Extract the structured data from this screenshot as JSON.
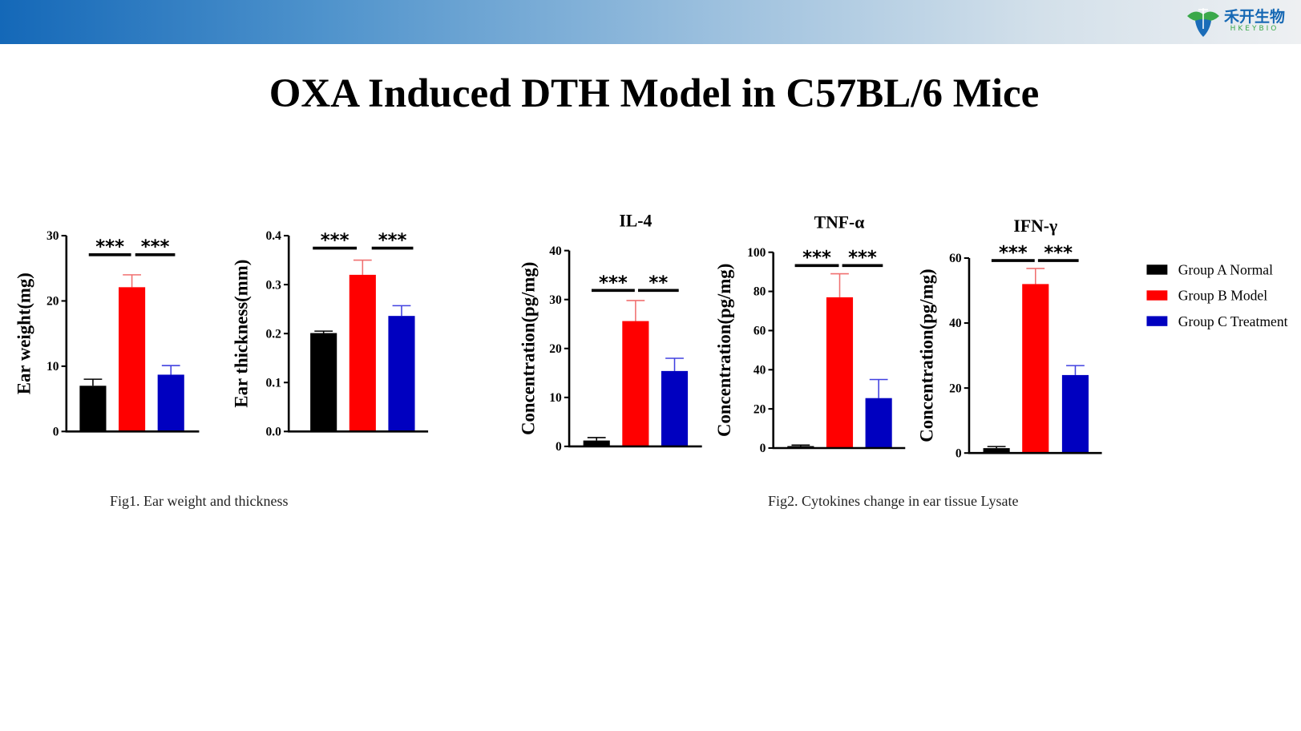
{
  "header": {
    "logo_cn": "禾开生物",
    "logo_en": "HKEYBIO"
  },
  "title": "OXA Induced DTH Model in C57BL/6 Mice",
  "captions": {
    "fig1": "Fig1. Ear weight and thickness",
    "fig2": "Fig2. Cytokines change in ear tissue Lysate"
  },
  "legend": [
    {
      "label": "Group A Normal",
      "color": "#000000"
    },
    {
      "label": "Group B Model",
      "color": "#ff0000"
    },
    {
      "label": "Group C Treatment",
      "color": "#0000c0"
    }
  ],
  "chart_data": [
    {
      "type": "bar",
      "title": "",
      "ylabel": "Ear weight(mg)",
      "ylim": [
        0,
        30
      ],
      "yticks": [
        "0",
        "10",
        "20",
        "30"
      ],
      "categories": [
        "Group A Normal",
        "Group B Model",
        "Group C Treatment"
      ],
      "values": [
        7.0,
        22.1,
        8.7
      ],
      "errors": [
        1.0,
        1.9,
        1.4
      ],
      "significance": [
        "***",
        "***"
      ]
    },
    {
      "type": "bar",
      "title": "",
      "ylabel": "Ear thickness(mm)",
      "ylim": [
        0,
        0.4
      ],
      "yticks": [
        "0.0",
        "0.1",
        "0.2",
        "0.3",
        "0.4"
      ],
      "categories": [
        "Group A Normal",
        "Group B Model",
        "Group C Treatment"
      ],
      "values": [
        0.201,
        0.32,
        0.236
      ],
      "errors": [
        0.004,
        0.03,
        0.021
      ],
      "significance": [
        "***",
        "***"
      ]
    },
    {
      "type": "bar",
      "title": "IL-4",
      "ylabel": "Concentration(pg/mg)",
      "ylim": [
        0,
        40
      ],
      "yticks": [
        "0",
        "10",
        "20",
        "30",
        "40"
      ],
      "categories": [
        "Group A Normal",
        "Group B Model",
        "Group C Treatment"
      ],
      "values": [
        1.2,
        25.6,
        15.4
      ],
      "errors": [
        0.6,
        4.2,
        2.6
      ],
      "significance": [
        "***",
        "**"
      ]
    },
    {
      "type": "bar",
      "title": "TNF-α",
      "ylabel": "Concentration(pg/mg)",
      "ylim": [
        0,
        100
      ],
      "yticks": [
        "0",
        "20",
        "40",
        "60",
        "80",
        "100"
      ],
      "categories": [
        "Group A Normal",
        "Group B Model",
        "Group C Treatment"
      ],
      "values": [
        1.0,
        77.0,
        25.5
      ],
      "errors": [
        0.5,
        12.0,
        9.5
      ],
      "significance": [
        "***",
        "***"
      ]
    },
    {
      "type": "bar",
      "title": "IFN-γ",
      "ylabel": "Concentration(pg/mg)",
      "ylim": [
        0,
        60
      ],
      "yticks": [
        "0",
        "20",
        "40",
        "60"
      ],
      "categories": [
        "Group A Normal",
        "Group B Model",
        "Group C Treatment"
      ],
      "values": [
        1.5,
        52.0,
        24.0
      ],
      "errors": [
        0.5,
        4.8,
        2.9
      ],
      "significance": [
        "***",
        "***"
      ]
    }
  ]
}
